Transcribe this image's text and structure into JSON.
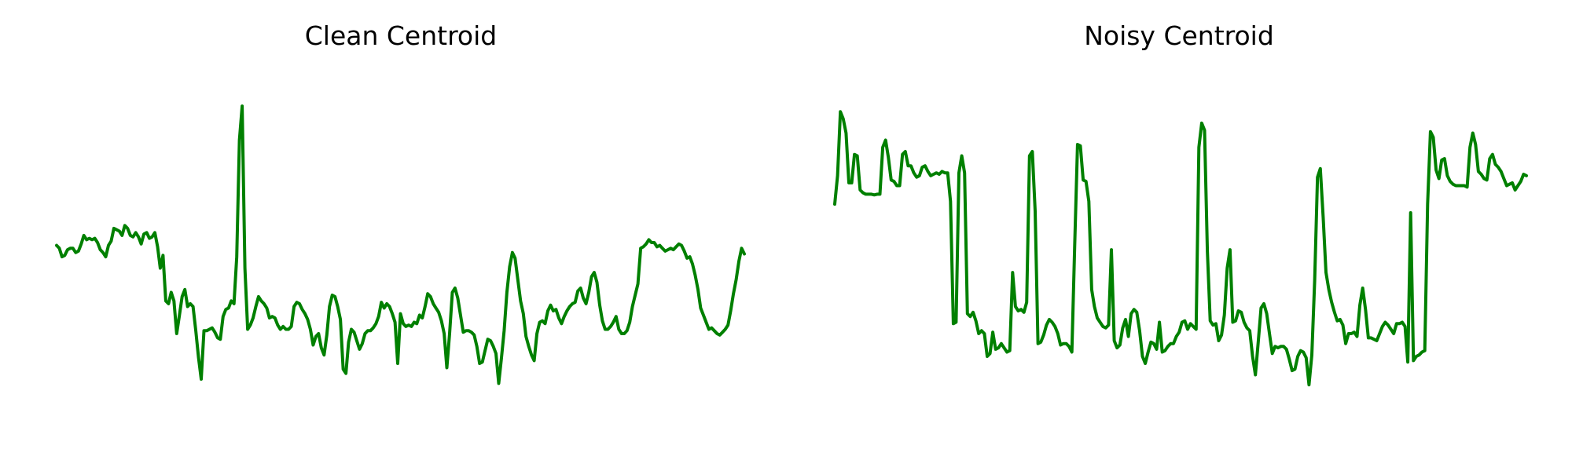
{
  "chart_data": [
    {
      "type": "line",
      "title": "Clean Centroid",
      "xlabel": "",
      "ylabel": "",
      "axes_visible": false,
      "grid": false,
      "xlim": [
        0,
        180
      ],
      "ylim": [
        -2.0,
        3.0
      ],
      "color": "#008000",
      "series": [
        {
          "values": [
            0.62,
            0.58,
            0.46,
            0.48,
            0.56,
            0.58,
            0.58,
            0.52,
            0.54,
            0.64,
            0.76,
            0.7,
            0.72,
            0.7,
            0.72,
            0.66,
            0.56,
            0.52,
            0.46,
            0.62,
            0.68,
            0.86,
            0.84,
            0.82,
            0.76,
            0.9,
            0.86,
            0.76,
            0.74,
            0.8,
            0.74,
            0.64,
            0.78,
            0.8,
            0.72,
            0.74,
            0.8,
            0.6,
            0.3,
            0.48,
            -0.16,
            -0.2,
            -0.04,
            -0.16,
            -0.62,
            -0.36,
            -0.1,
            0.0,
            -0.24,
            -0.2,
            -0.24,
            -0.58,
            -0.96,
            -1.26,
            -0.58,
            -0.58,
            -0.56,
            -0.54,
            -0.6,
            -0.68,
            -0.7,
            -0.38,
            -0.28,
            -0.26,
            -0.16,
            -0.2,
            0.46,
            2.1,
            2.58,
            0.3,
            -0.56,
            -0.5,
            -0.4,
            -0.24,
            -0.1,
            -0.16,
            -0.2,
            -0.26,
            -0.4,
            -0.38,
            -0.4,
            -0.5,
            -0.56,
            -0.52,
            -0.56,
            -0.56,
            -0.52,
            -0.24,
            -0.18,
            -0.2,
            -0.28,
            -0.34,
            -0.42,
            -0.56,
            -0.78,
            -0.66,
            -0.62,
            -0.82,
            -0.92,
            -0.64,
            -0.24,
            -0.08,
            -0.1,
            -0.24,
            -0.42,
            -1.12,
            -1.18,
            -0.74,
            -0.56,
            -0.6,
            -0.72,
            -0.84,
            -0.76,
            -0.62,
            -0.58,
            -0.58,
            -0.54,
            -0.48,
            -0.38,
            -0.18,
            -0.26,
            -0.2,
            -0.24,
            -0.34,
            -0.46,
            -1.04,
            -0.34,
            -0.48,
            -0.52,
            -0.5,
            -0.52,
            -0.46,
            -0.48,
            -0.36,
            -0.4,
            -0.24,
            -0.06,
            -0.1,
            -0.2,
            -0.26,
            -0.32,
            -0.44,
            -0.62,
            -1.1,
            -0.62,
            -0.04,
            0.02,
            -0.12,
            -0.36,
            -0.6,
            -0.58,
            -0.58,
            -0.6,
            -0.64,
            -0.8,
            -1.04,
            -1.02,
            -0.86,
            -0.7,
            -0.72,
            -0.8,
            -0.9,
            -1.32,
            -0.96,
            -0.58,
            -0.04,
            0.32,
            0.52,
            0.44,
            0.14,
            -0.16,
            -0.34,
            -0.66,
            -0.8,
            -0.92,
            -1.0,
            -0.62,
            -0.46,
            -0.44,
            -0.48,
            -0.3,
            -0.22,
            -0.3,
            -0.28,
            -0.4,
            -0.48,
            -0.38,
            -0.3,
            -0.24,
            -0.2,
            -0.18,
            -0.02,
            0.02,
            -0.12,
            -0.2,
            -0.04,
            0.18,
            0.24,
            0.1,
            -0.22,
            -0.44,
            -0.56,
            -0.56,
            -0.52,
            -0.46,
            -0.38,
            -0.56,
            -0.62,
            -0.62,
            -0.58,
            -0.46,
            -0.24,
            -0.08,
            0.08,
            0.58,
            0.6,
            0.64,
            0.7,
            0.66,
            0.66,
            0.6,
            0.62,
            0.58,
            0.54,
            0.56,
            0.58,
            0.56,
            0.6,
            0.64,
            0.62,
            0.54,
            0.44,
            0.46,
            0.36,
            0.2,
            0.0,
            -0.26,
            -0.36,
            -0.46,
            -0.56,
            -0.54,
            -0.58,
            -0.62,
            -0.64,
            -0.6,
            -0.56,
            -0.5,
            -0.3,
            -0.06,
            0.14,
            0.4,
            0.58,
            0.5
          ]
        }
      ]
    },
    {
      "type": "line",
      "title": "Noisy Centroid",
      "xlabel": "",
      "ylabel": "",
      "axes_visible": false,
      "grid": false,
      "xlim": [
        0,
        180
      ],
      "ylim": [
        -2.0,
        3.0
      ],
      "color": "#008000",
      "series": [
        {
          "values": [
            1.2,
            1.6,
            2.5,
            2.4,
            2.2,
            1.5,
            1.5,
            1.9,
            1.88,
            1.4,
            1.36,
            1.34,
            1.34,
            1.34,
            1.33,
            1.34,
            1.34,
            2.0,
            2.1,
            1.86,
            1.54,
            1.52,
            1.46,
            1.46,
            1.9,
            1.94,
            1.74,
            1.74,
            1.64,
            1.58,
            1.6,
            1.72,
            1.74,
            1.66,
            1.6,
            1.62,
            1.64,
            1.62,
            1.66,
            1.64,
            1.64,
            1.24,
            -0.48,
            -0.46,
            1.64,
            1.88,
            1.64,
            -0.34,
            -0.38,
            -0.32,
            -0.44,
            -0.62,
            -0.58,
            -0.62,
            -0.94,
            -0.9,
            -0.6,
            -0.84,
            -0.82,
            -0.76,
            -0.82,
            -0.88,
            -0.86,
            0.24,
            -0.24,
            -0.3,
            -0.28,
            -0.32,
            -0.18,
            1.88,
            1.94,
            1.1,
            -0.76,
            -0.74,
            -0.64,
            -0.5,
            -0.42,
            -0.46,
            -0.52,
            -0.62,
            -0.78,
            -0.76,
            -0.76,
            -0.8,
            -0.88,
            0.62,
            2.04,
            2.02,
            1.54,
            1.52,
            1.24,
            0.0,
            -0.24,
            -0.4,
            -0.46,
            -0.52,
            -0.54,
            -0.5,
            0.56,
            -0.72,
            -0.82,
            -0.78,
            -0.54,
            -0.42,
            -0.66,
            -0.34,
            -0.28,
            -0.32,
            -0.58,
            -0.94,
            -1.04,
            -0.88,
            -0.74,
            -0.76,
            -0.84,
            -0.46,
            -0.88,
            -0.86,
            -0.8,
            -0.76,
            -0.76,
            -0.66,
            -0.6,
            -0.46,
            -0.44,
            -0.56,
            -0.48,
            -0.52,
            -0.56,
            2.0,
            2.34,
            2.24,
            0.54,
            -0.44,
            -0.5,
            -0.48,
            -0.72,
            -0.64,
            -0.36,
            0.3,
            0.56,
            -0.46,
            -0.44,
            -0.3,
            -0.32,
            -0.46,
            -0.54,
            -0.58,
            -0.94,
            -1.2,
            -0.74,
            -0.26,
            -0.2,
            -0.34,
            -0.62,
            -0.9,
            -0.8,
            -0.82,
            -0.8,
            -0.8,
            -0.84,
            -0.98,
            -1.14,
            -1.12,
            -0.94,
            -0.86,
            -0.88,
            -0.96,
            -1.34,
            -0.92,
            0.12,
            1.58,
            1.7,
            1.02,
            0.24,
            0.0,
            -0.18,
            -0.32,
            -0.44,
            -0.42,
            -0.5,
            -0.76,
            -0.62,
            -0.62,
            -0.6,
            -0.66,
            -0.22,
            0.02,
            -0.28,
            -0.68,
            -0.68,
            -0.7,
            -0.72,
            -0.62,
            -0.52,
            -0.46,
            -0.5,
            -0.56,
            -0.62,
            -0.48,
            -0.48,
            -0.46,
            -0.52,
            -1.02,
            1.08,
            -1.0,
            -0.94,
            -0.92,
            -0.88,
            -0.86,
            1.2,
            2.22,
            2.14,
            1.68,
            1.56,
            1.82,
            1.84,
            1.6,
            1.52,
            1.48,
            1.46,
            1.46,
            1.46,
            1.46,
            1.44,
            2.0,
            2.2,
            2.04,
            1.66,
            1.62,
            1.56,
            1.54,
            1.84,
            1.9,
            1.76,
            1.72,
            1.66,
            1.56,
            1.46,
            1.48,
            1.5,
            1.4,
            1.46,
            1.52,
            1.62,
            1.6
          ]
        }
      ]
    }
  ]
}
